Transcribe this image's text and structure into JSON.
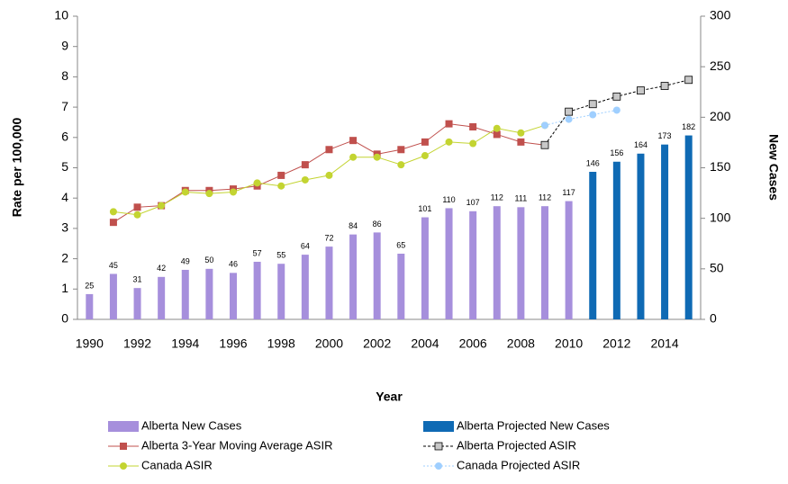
{
  "chart_data": {
    "type": "bar",
    "x_label": "Year",
    "y_label": "Rate per 100,000",
    "y2_label": "New Cases",
    "categories": [
      "1990",
      null,
      "1992",
      null,
      "1994",
      null,
      "1996",
      null,
      "1998",
      null,
      "2000",
      null,
      "2002",
      null,
      "2004",
      null,
      "2006",
      null,
      "2008",
      null,
      "2010",
      null,
      "2012",
      null,
      "2014",
      null
    ],
    "ylim": [
      0,
      10
    ],
    "yticks": [
      0,
      1,
      2,
      3,
      4,
      5,
      6,
      7,
      8,
      9,
      10
    ],
    "y2lim": [
      0,
      300
    ],
    "y2ticks": [
      0,
      50,
      100,
      150,
      200,
      250,
      300
    ],
    "series": [
      {
        "name": "Alberta New Cases",
        "type": "bar",
        "axis": "y2",
        "color": "#a68fdc",
        "values": [
          25,
          45,
          31,
          42,
          49,
          50,
          46,
          57,
          55,
          64,
          72,
          84,
          86,
          65,
          101,
          110,
          107,
          112,
          111,
          112,
          117,
          null,
          null,
          null,
          null,
          null
        ]
      },
      {
        "name": "Alberta Projected New Cases",
        "type": "bar",
        "axis": "y2",
        "color": "#0f6ab4",
        "values": [
          null,
          null,
          null,
          null,
          null,
          null,
          null,
          null,
          null,
          null,
          null,
          null,
          null,
          null,
          null,
          null,
          null,
          null,
          null,
          null,
          null,
          146,
          156,
          164,
          173,
          182
        ]
      },
      {
        "name": "Alberta 3-Year Moving Average ASIR",
        "type": "line",
        "color": "#c0504d",
        "marker": "square",
        "dash": "solid",
        "values": [
          null,
          3.2,
          3.7,
          3.75,
          4.25,
          4.25,
          4.3,
          4.4,
          4.75,
          5.1,
          5.6,
          5.9,
          5.45,
          5.6,
          5.85,
          6.45,
          6.35,
          6.1,
          5.85,
          5.75,
          null,
          null,
          null,
          null,
          null,
          null
        ]
      },
      {
        "name": "Alberta Projected ASIR",
        "type": "line",
        "color": "#000000",
        "marker_fill": "#c8c8c8",
        "marker": "square",
        "dash": "dashed",
        "values": [
          null,
          null,
          null,
          null,
          null,
          null,
          null,
          null,
          null,
          null,
          null,
          null,
          null,
          null,
          null,
          null,
          null,
          null,
          null,
          5.75,
          6.85,
          7.1,
          7.35,
          7.55,
          7.7,
          7.9
        ]
      },
      {
        "name": "Canada ASIR",
        "type": "line",
        "color": "#c3d431",
        "marker": "circle",
        "dash": "solid",
        "values": [
          null,
          3.55,
          3.45,
          3.75,
          4.2,
          4.15,
          4.2,
          4.5,
          4.4,
          4.6,
          4.75,
          5.35,
          5.35,
          5.1,
          5.4,
          5.85,
          5.8,
          6.3,
          6.15,
          6.4,
          null,
          null,
          null,
          null,
          null,
          null
        ]
      },
      {
        "name": "Canada Projected ASIR",
        "type": "line",
        "color": "#9fcfff",
        "marker": "circle",
        "dash": "dotted",
        "values": [
          null,
          null,
          null,
          null,
          null,
          null,
          null,
          null,
          null,
          null,
          null,
          null,
          null,
          null,
          null,
          null,
          null,
          null,
          null,
          6.4,
          6.6,
          6.75,
          6.9,
          null,
          null,
          null
        ]
      }
    ]
  }
}
